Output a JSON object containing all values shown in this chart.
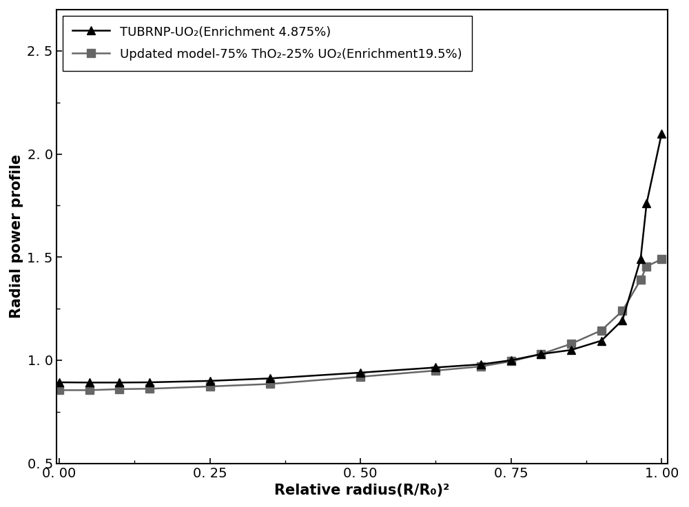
{
  "series1_label": "TUBRNP-UO₂(Enrichment 4.875%)",
  "series2_label": "Updated model-75% ThO₂-25% UO₂(Enrichment19.5%)",
  "series1_x": [
    0.0,
    0.05,
    0.1,
    0.15,
    0.25,
    0.35,
    0.5,
    0.625,
    0.7,
    0.75,
    0.8,
    0.85,
    0.9,
    0.935,
    0.965,
    0.975,
    1.0
  ],
  "series1_y": [
    0.893,
    0.892,
    0.892,
    0.893,
    0.9,
    0.912,
    0.94,
    0.965,
    0.98,
    1.0,
    1.03,
    1.05,
    1.095,
    1.195,
    1.49,
    1.76,
    2.1
  ],
  "series2_x": [
    0.0,
    0.05,
    0.1,
    0.15,
    0.25,
    0.35,
    0.5,
    0.625,
    0.7,
    0.75,
    0.8,
    0.85,
    0.9,
    0.935,
    0.965,
    0.975,
    1.0
  ],
  "series2_y": [
    0.855,
    0.855,
    0.86,
    0.862,
    0.873,
    0.885,
    0.92,
    0.95,
    0.97,
    0.995,
    1.03,
    1.08,
    1.145,
    1.24,
    1.39,
    1.455,
    1.49
  ],
  "series1_color": "#000000",
  "series2_color": "#666666",
  "xlabel": "Relative radius(R/R₀)²",
  "ylabel": "Radial power profile",
  "xlim": [
    -0.005,
    1.01
  ],
  "ylim": [
    0.5,
    2.7
  ],
  "xticks": [
    0.0,
    0.25,
    0.5,
    0.75,
    1.0
  ],
  "yticks": [
    0.5,
    1.0,
    1.5,
    2.0,
    2.5
  ],
  "label_fontsize": 15,
  "tick_fontsize": 14,
  "legend_fontsize": 13,
  "linewidth": 1.8,
  "markersize1": 9,
  "markersize2": 8,
  "background_color": "#ffffff",
  "minor_xticks": [
    0.125,
    0.375,
    0.625,
    0.875
  ],
  "minor_yticks": [
    0.75,
    1.25,
    1.75,
    2.25
  ]
}
